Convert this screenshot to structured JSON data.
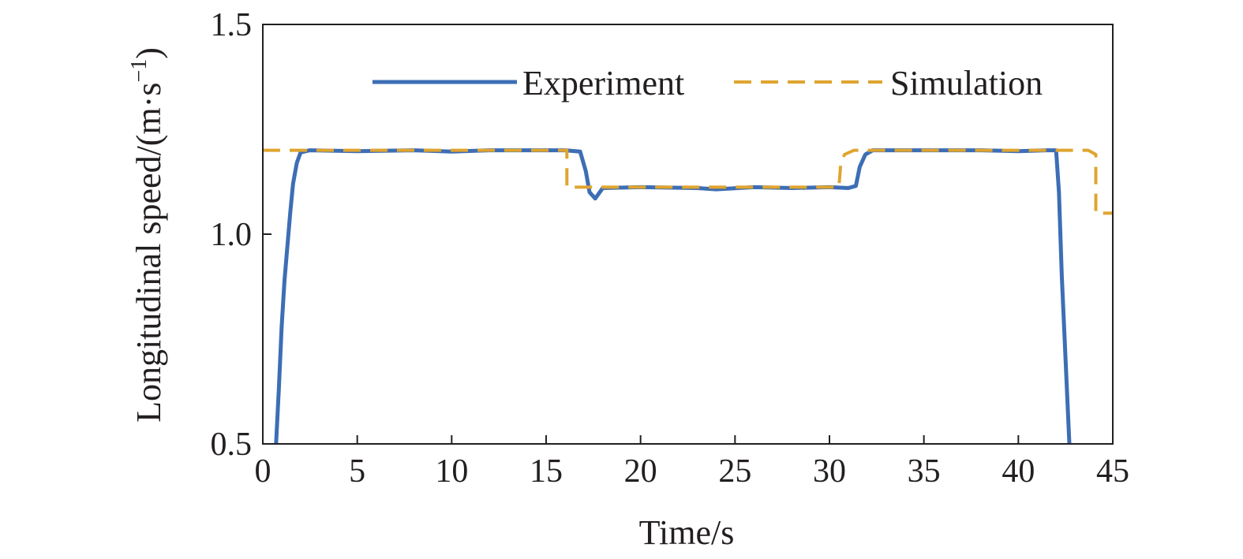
{
  "chart_data": {
    "type": "line",
    "xlabel": "Time/s",
    "ylabel": "Longitudinal speed/(m·s",
    "ylabel_sup": "−1",
    "ylabel_close": ")",
    "xlim": [
      0,
      45
    ],
    "ylim": [
      0.5,
      1.5
    ],
    "x_ticks": [
      0,
      5,
      10,
      15,
      20,
      25,
      30,
      35,
      40,
      45
    ],
    "x_tick_labels": [
      "0",
      "5",
      "10",
      "15",
      "20",
      "25",
      "30",
      "35",
      "40",
      "45"
    ],
    "y_ticks": [
      0.5,
      1.0,
      1.5
    ],
    "y_tick_labels": [
      "0.5",
      "1.0",
      "1.5"
    ],
    "grid": false,
    "legend_position": "top-right",
    "series": [
      {
        "name": "Experiment",
        "color": "#3d6eb5",
        "dash": "solid",
        "points": [
          [
            0.7,
            0.5
          ],
          [
            0.85,
            0.63
          ],
          [
            1.0,
            0.78
          ],
          [
            1.15,
            0.89
          ],
          [
            1.3,
            0.97
          ],
          [
            1.45,
            1.05
          ],
          [
            1.6,
            1.12
          ],
          [
            1.8,
            1.17
          ],
          [
            2.0,
            1.195
          ],
          [
            2.5,
            1.2
          ],
          [
            5,
            1.198
          ],
          [
            8,
            1.2
          ],
          [
            10,
            1.197
          ],
          [
            12,
            1.2
          ],
          [
            14,
            1.2
          ],
          [
            16,
            1.2
          ],
          [
            16.8,
            1.197
          ],
          [
            17.1,
            1.15
          ],
          [
            17.3,
            1.1
          ],
          [
            17.6,
            1.085
          ],
          [
            18.0,
            1.11
          ],
          [
            20,
            1.112
          ],
          [
            23,
            1.11
          ],
          [
            24,
            1.107
          ],
          [
            26,
            1.112
          ],
          [
            28,
            1.11
          ],
          [
            30,
            1.112
          ],
          [
            31.0,
            1.11
          ],
          [
            31.4,
            1.115
          ],
          [
            31.6,
            1.16
          ],
          [
            31.9,
            1.19
          ],
          [
            32.3,
            1.2
          ],
          [
            35,
            1.2
          ],
          [
            38,
            1.2
          ],
          [
            40,
            1.198
          ],
          [
            41.5,
            1.2
          ],
          [
            42.0,
            1.2
          ],
          [
            42.15,
            1.1
          ],
          [
            42.3,
            0.9
          ],
          [
            42.5,
            0.7
          ],
          [
            42.7,
            0.5
          ]
        ]
      },
      {
        "name": "Simulation",
        "color": "#dfa530",
        "dash": "dashed",
        "points": [
          [
            0,
            1.2
          ],
          [
            16.0,
            1.2
          ],
          [
            16.1,
            1.2
          ],
          [
            16.1,
            1.112
          ],
          [
            30.5,
            1.112
          ],
          [
            30.6,
            1.17
          ],
          [
            30.8,
            1.19
          ],
          [
            31.3,
            1.2
          ],
          [
            43.7,
            1.2
          ],
          [
            44.1,
            1.19
          ],
          [
            44.1,
            1.05
          ],
          [
            45,
            1.05
          ]
        ]
      }
    ]
  }
}
